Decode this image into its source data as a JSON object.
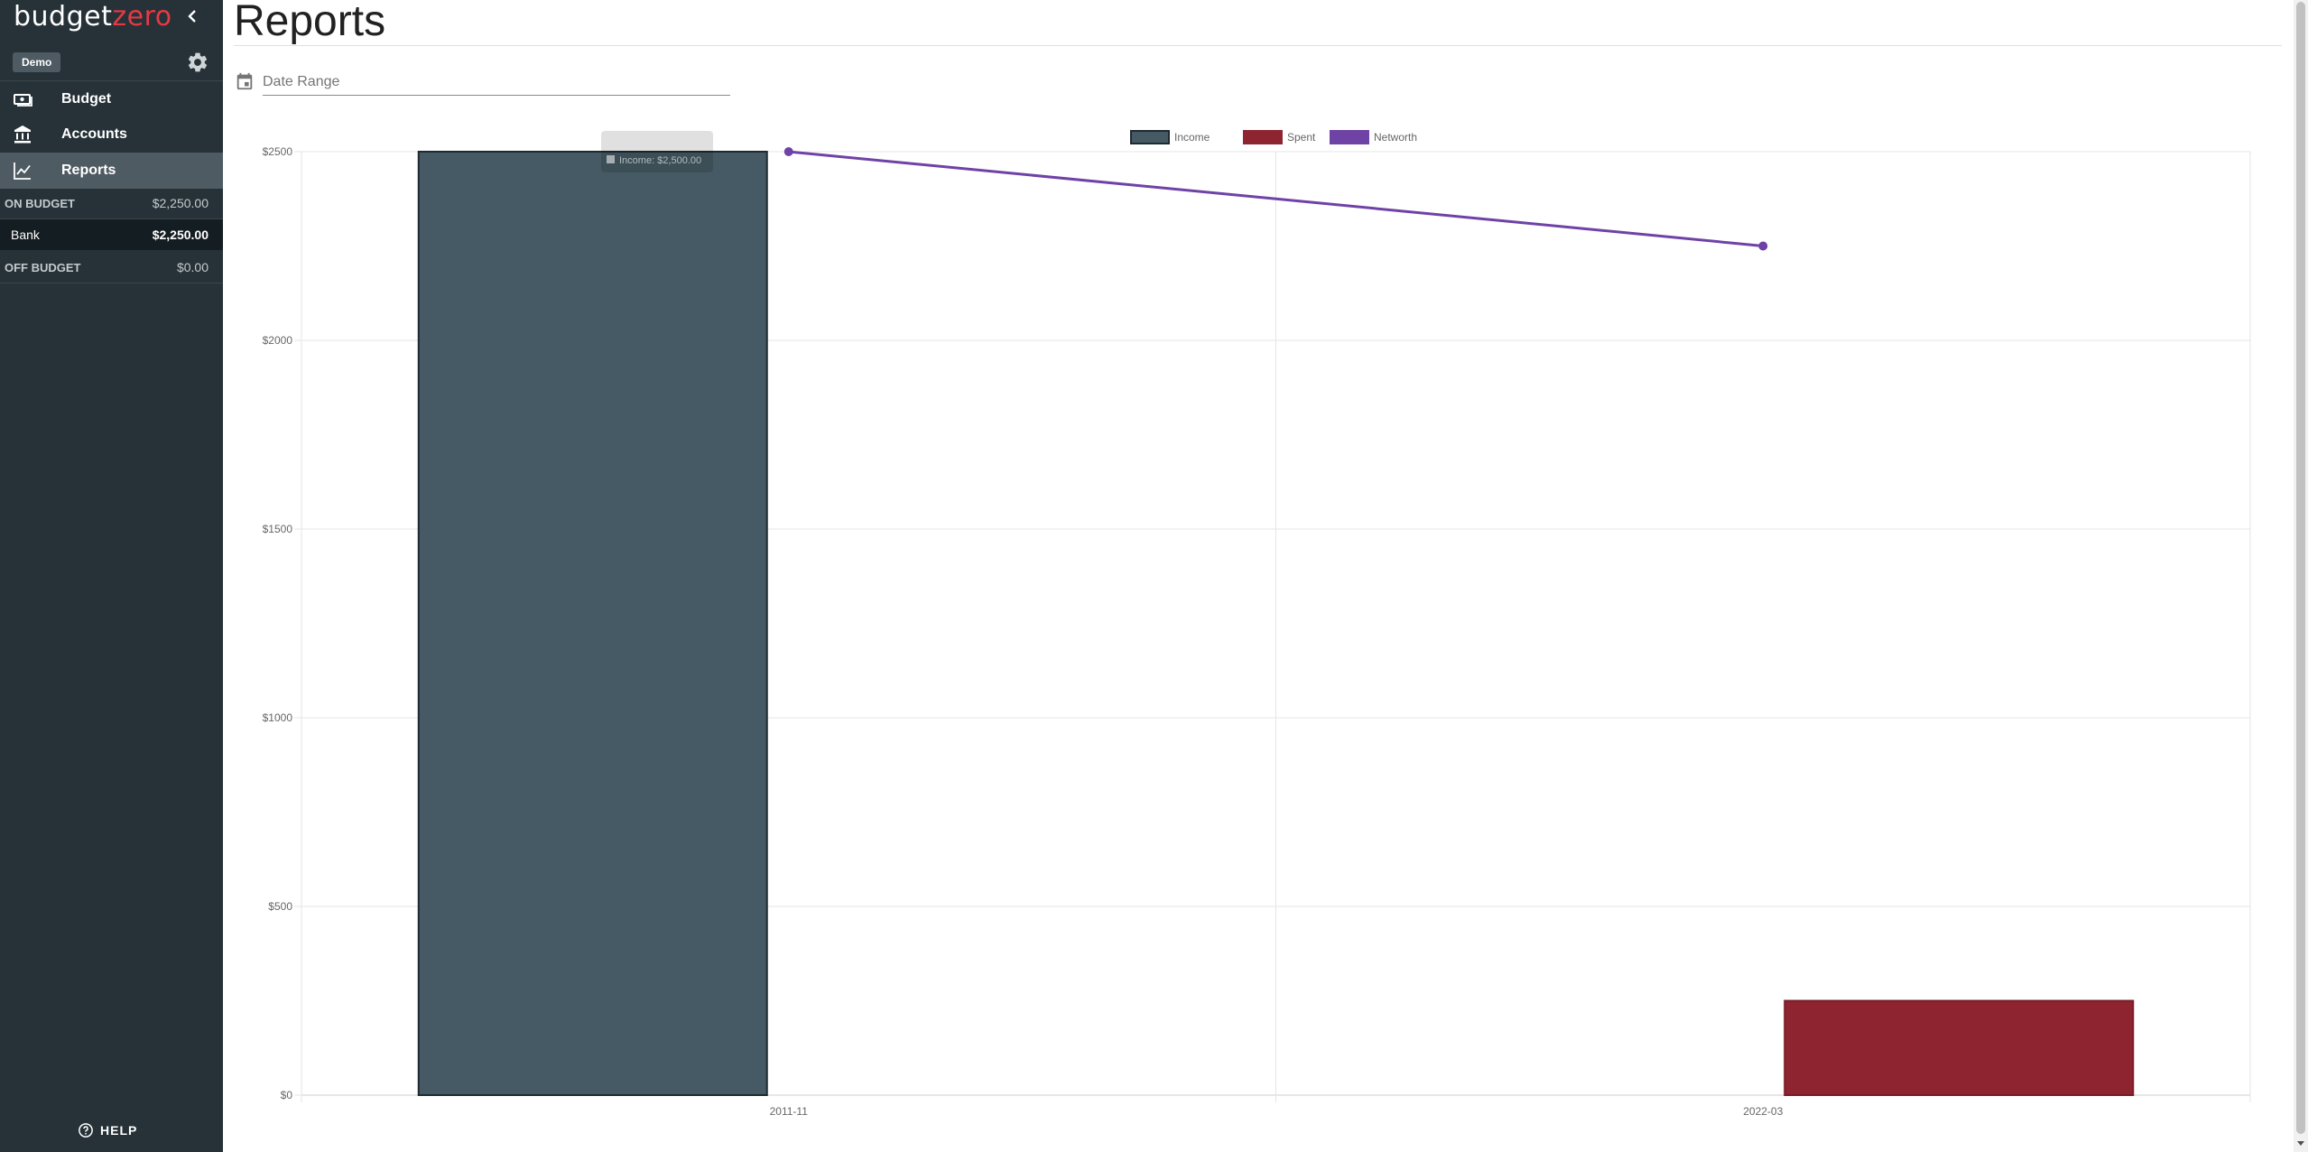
{
  "sidebar": {
    "brand_primary": "budget",
    "brand_accent": "zero",
    "collapse_icon": "chevron-left-icon",
    "budget_name": "Demo",
    "settings_icon": "gear-icon",
    "nav": [
      {
        "label": "Budget",
        "icon": "money-icon",
        "active": false
      },
      {
        "label": "Accounts",
        "icon": "bank-icon",
        "active": false
      },
      {
        "label": "Reports",
        "icon": "chart-line-icon",
        "active": true
      }
    ],
    "on_budget": {
      "label": "ON BUDGET",
      "amount": "$2,250.00"
    },
    "accounts": [
      {
        "name": "Bank",
        "amount": "$2,250.00"
      }
    ],
    "off_budget": {
      "label": "OFF BUDGET",
      "amount": "$0.00"
    },
    "help_label": "HELP",
    "help_icon": "help-circle-icon"
  },
  "main": {
    "title": "Reports",
    "date_range_placeholder": "Date Range",
    "date_icon": "calendar-icon"
  },
  "colors": {
    "sidebar_bg": "#263238",
    "brand_accent": "#e53945",
    "income": "#455a64",
    "spent": "#8e2430",
    "networth": "#6f42a6"
  },
  "chart_data": {
    "type": "bar",
    "categories": [
      "2011-11",
      "2022-03"
    ],
    "series": [
      {
        "name": "Income",
        "type": "bar",
        "values": [
          2500,
          0
        ]
      },
      {
        "name": "Spent",
        "type": "bar",
        "values": [
          0,
          250
        ]
      },
      {
        "name": "Networth",
        "type": "line",
        "values": [
          2500,
          2250
        ]
      }
    ],
    "y_ticks": [
      "$0",
      "$500",
      "$1000",
      "$1500",
      "$2000",
      "$2500"
    ],
    "ylim": [
      0,
      2500
    ],
    "grid": true,
    "legend_position": "top-center",
    "tooltip": {
      "series": "Income",
      "text": "Income: $2,500.00"
    }
  }
}
